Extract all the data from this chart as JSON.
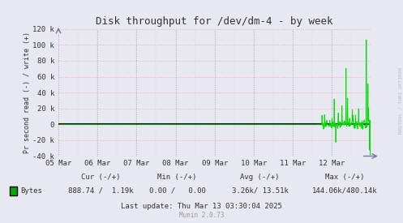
{
  "title": "Disk throughput for /dev/dm-4 - by week",
  "ylabel": "Pr second read (-) / write (+)",
  "background_color": "#e8e8f0",
  "plot_bg_color": "#e8e8f0",
  "grid_color_h": "#ffaaaa",
  "grid_color_v": "#aaaacc",
  "grid_linestyle": ":",
  "ylim": [
    -40000,
    120000
  ],
  "yticks": [
    -40000,
    -20000,
    0,
    20000,
    40000,
    60000,
    80000,
    100000,
    120000
  ],
  "ytick_labels": [
    "-40 k",
    "-20 k",
    "0",
    "20 k",
    "40 k",
    "60 k",
    "80 k",
    "100 k",
    "120 k"
  ],
  "xtick_labels": [
    "05 Mar",
    "06 Mar",
    "07 Mar",
    "08 Mar",
    "09 Mar",
    "10 Mar",
    "11 Mar",
    "12 Mar"
  ],
  "line_color": "#00dd00",
  "zero_line_color": "#000000",
  "legend_label": "Bytes",
  "legend_color": "#00aa00",
  "cur_label": "Cur (-/+)",
  "min_label": "Min (-/+)",
  "avg_label": "Avg (-/+)",
  "max_label": "Max (-/+)",
  "cur_val": "888.74 /  1.19k",
  "min_val": "0.00 /   0.00",
  "avg_val": "3.26k/ 13.51k",
  "max_val": "144.06k/480.14k",
  "last_update_text": "Last update: Thu Mar 13 03:30:04 2025",
  "munin_text": "Munin 2.0.73",
  "rrdtool_text": "RRDTOOL / TOBI OETIKER",
  "text_color": "#333333",
  "muted_color": "#999999",
  "arrow_color": "#7777aa"
}
